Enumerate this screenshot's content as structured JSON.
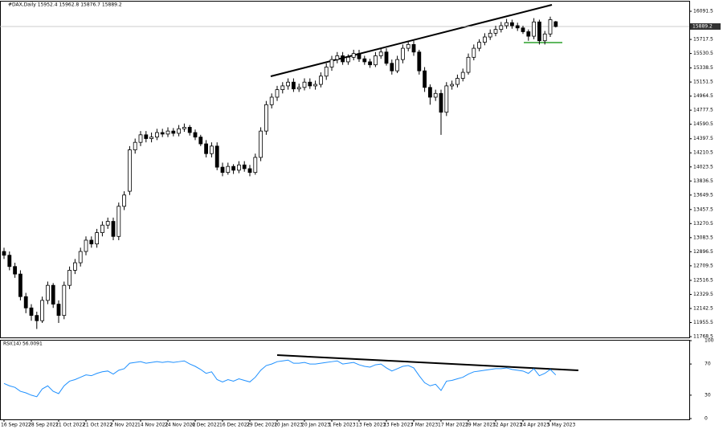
{
  "chart_data": [
    {
      "type": "candlestick",
      "title": "#DAX,Daily 15952.4 15962.8 15876.7 15889.2",
      "categories": [
        "16 Sep 2022",
        null,
        null,
        null,
        null,
        "28 Sep 2022",
        null,
        null,
        null,
        null,
        "11 Oct 2022",
        null,
        null,
        null,
        null,
        "21 Oct 2022",
        null,
        null,
        null,
        null,
        "2 Nov 2022",
        null,
        null,
        null,
        null,
        "14 Nov 2022",
        null,
        null,
        null,
        null,
        "24 Nov 2022",
        null,
        null,
        null,
        null,
        "6 Dec 2022",
        null,
        null,
        null,
        null,
        "16 Dec 2022",
        null,
        null,
        null,
        null,
        "29 Dec 2022",
        null,
        null,
        null,
        null,
        "10 Jan 2023",
        null,
        null,
        null,
        null,
        "20 Jan 2023",
        null,
        null,
        null,
        null,
        "1 Feb 2023",
        null,
        null,
        null,
        null,
        "13 Feb 2023",
        null,
        null,
        null,
        null,
        "23 Feb 2023",
        null,
        null,
        null,
        null,
        "7 Mar 2023",
        null,
        null,
        null,
        null,
        "17 Mar 2023",
        null,
        null,
        null,
        null,
        "29 Mar 2023",
        null,
        null,
        null,
        null,
        "12 Apr 2023",
        null,
        null,
        null,
        null,
        "24 Apr 2023",
        null,
        null,
        null,
        null,
        "5 May 2023",
        null
      ],
      "open": [
        12900,
        12850,
        12700,
        12600,
        12300,
        12150,
        12050,
        11980,
        12250,
        12450,
        12200,
        12050,
        12450,
        12650,
        12750,
        12900,
        13050,
        13000,
        13150,
        13250,
        13300,
        13100,
        13500,
        13700,
        14250,
        14350,
        14450,
        14400,
        14420,
        14480,
        14460,
        14500,
        14470,
        14530,
        14550,
        14480,
        14420,
        14330,
        14200,
        14300,
        14020,
        13950,
        14030,
        13980,
        14050,
        14000,
        13950,
        14150,
        14500,
        14850,
        14950,
        15050,
        15100,
        15150,
        15060,
        15080,
        15150,
        15100,
        15120,
        15230,
        15350,
        15450,
        15500,
        15420,
        15480,
        15530,
        15460,
        15420,
        15380,
        15500,
        15550,
        15400,
        15300,
        15450,
        15600,
        15650,
        15550,
        15300,
        15080,
        14950,
        15000,
        14750,
        15100,
        15120,
        15200,
        15280,
        15480,
        15600,
        15680,
        15750,
        15800,
        15850,
        15900,
        15940,
        15900,
        15870,
        15820,
        15760,
        15950,
        15700,
        15790,
        15952.4
      ],
      "high": [
        12950,
        12900,
        12750,
        12650,
        12350,
        12200,
        12100,
        12300,
        12500,
        12480,
        12250,
        12500,
        12700,
        12800,
        12950,
        13100,
        13100,
        13200,
        13300,
        13350,
        13350,
        13550,
        13700,
        14300,
        14400,
        14500,
        14500,
        14480,
        14530,
        14530,
        14550,
        14540,
        14580,
        14600,
        14580,
        14520,
        14450,
        14380,
        14350,
        14350,
        14080,
        14080,
        14060,
        14100,
        14100,
        14050,
        14200,
        14550,
        14900,
        15000,
        15100,
        15150,
        15200,
        15200,
        15130,
        15200,
        15200,
        15170,
        15280,
        15400,
        15500,
        15550,
        15550,
        15520,
        15580,
        15580,
        15500,
        15460,
        15550,
        15600,
        15600,
        15450,
        15500,
        15650,
        15700,
        15700,
        15580,
        15350,
        15120,
        15050,
        15050,
        15150,
        15170,
        15250,
        15330,
        15530,
        15650,
        15720,
        15800,
        15850,
        15900,
        15950,
        15990,
        15980,
        15940,
        15900,
        15850,
        16000,
        15980,
        15830,
        16020,
        15962.8
      ],
      "low": [
        12800,
        12650,
        12550,
        12250,
        12080,
        11980,
        11870,
        11950,
        12200,
        12150,
        11950,
        12000,
        12400,
        12600,
        12700,
        12850,
        12950,
        12950,
        13100,
        13200,
        13050,
        13050,
        13450,
        13650,
        14200,
        14300,
        14350,
        14350,
        14380,
        14420,
        14420,
        14430,
        14430,
        14490,
        14440,
        14380,
        14300,
        14150,
        14150,
        13980,
        13900,
        13920,
        13930,
        13940,
        13960,
        13900,
        13920,
        14100,
        14450,
        14800,
        14900,
        15000,
        15050,
        15020,
        15020,
        15040,
        15060,
        15050,
        15080,
        15180,
        15300,
        15400,
        15380,
        15380,
        15440,
        15420,
        15380,
        15340,
        15350,
        15460,
        15370,
        15250,
        15270,
        15400,
        15560,
        15500,
        15250,
        15020,
        14850,
        14900,
        14450,
        14700,
        15050,
        15080,
        15160,
        15250,
        15440,
        15560,
        15640,
        15710,
        15760,
        15810,
        15860,
        15860,
        15830,
        15790,
        15700,
        15720,
        15650,
        15650,
        15750,
        15876.7
      ],
      "close": [
        12850,
        12700,
        12600,
        12300,
        12150,
        12050,
        11980,
        12250,
        12450,
        12200,
        12050,
        12450,
        12650,
        12750,
        12900,
        13050,
        13000,
        13150,
        13250,
        13300,
        13100,
        13500,
        13650,
        14250,
        14350,
        14450,
        14400,
        14420,
        14480,
        14460,
        14500,
        14470,
        14530,
        14550,
        14480,
        14420,
        14330,
        14200,
        14300,
        14020,
        13950,
        14030,
        13980,
        14050,
        14000,
        13950,
        14150,
        14500,
        14850,
        14950,
        15050,
        15100,
        15150,
        15060,
        15080,
        15150,
        15100,
        15120,
        15230,
        15350,
        15450,
        15500,
        15420,
        15480,
        15530,
        15460,
        15420,
        15380,
        15500,
        15550,
        15400,
        15300,
        15450,
        15600,
        15650,
        15550,
        15300,
        15080,
        14950,
        15000,
        14750,
        15100,
        15120,
        15200,
        15280,
        15480,
        15600,
        15680,
        15750,
        15800,
        15850,
        15900,
        15940,
        15900,
        15870,
        15820,
        15760,
        15950,
        15700,
        15790,
        15980,
        15889.2
      ],
      "ylim": [
        11758,
        16220
      ],
      "yticks": [
        16091.5,
        15717.5,
        15530.5,
        15338.5,
        15151.5,
        14964.5,
        14777.5,
        14590.5,
        14397.5,
        14210.5,
        14023.5,
        13836.5,
        13649.5,
        13457.5,
        13270.5,
        13083.5,
        12896.5,
        12709.5,
        12516.5,
        12329.5,
        12142.5,
        11955.5,
        11768.5
      ]
    },
    {
      "type": "line",
      "title": "RSI(14) 56.0091",
      "color": "#1e90ff",
      "values": [
        45,
        42,
        40,
        35,
        33,
        30,
        28,
        38,
        42,
        35,
        32,
        42,
        48,
        50,
        53,
        56,
        55,
        58,
        60,
        61,
        57,
        62,
        64,
        71,
        72,
        73,
        71,
        72,
        73,
        72,
        73,
        72,
        73,
        74,
        70,
        67,
        63,
        58,
        60,
        50,
        47,
        50,
        48,
        51,
        49,
        47,
        53,
        62,
        68,
        70,
        73,
        74,
        75,
        71,
        71,
        72,
        70,
        70,
        71,
        72,
        73,
        74,
        70,
        71,
        72,
        69,
        67,
        66,
        69,
        70,
        65,
        61,
        64,
        67,
        68,
        65,
        55,
        46,
        42,
        44,
        36,
        48,
        49,
        51,
        53,
        57,
        60,
        61,
        62,
        63,
        64,
        64,
        65,
        63,
        62,
        61,
        58,
        64,
        55,
        58,
        63,
        56.0091
      ],
      "ylim": [
        0,
        100
      ],
      "yticks": [
        100,
        70,
        30,
        0
      ]
    }
  ]
}
